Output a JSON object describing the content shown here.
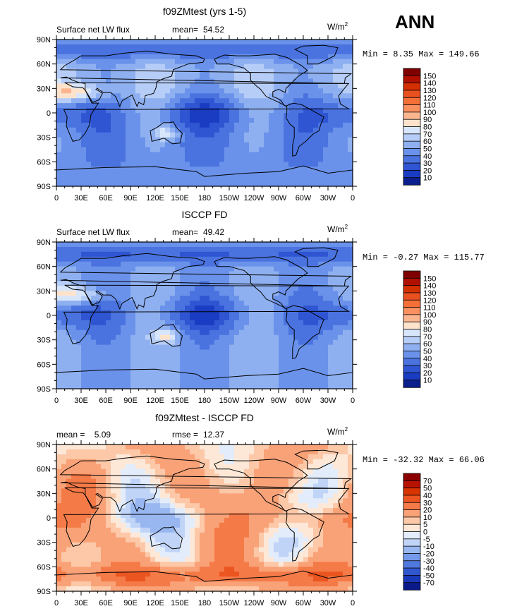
{
  "season": "ANN",
  "panels": [
    {
      "title": "f09ZMtest (yrs 1-5)",
      "left_label": "Surface net LW flux",
      "stat_label": "mean=",
      "stat_value": "54.52",
      "unit": "W/m",
      "unit_exp": "2",
      "minmax": "Min =   8.35 Max = 149.66",
      "colorbar_labels": [
        "150",
        "140",
        "130",
        "120",
        "110",
        "100",
        "90",
        "80",
        "70",
        "60",
        "50",
        "40",
        "30",
        "20",
        "10"
      ],
      "colors": [
        "#7f0000",
        "#b01000",
        "#d23000",
        "#e85020",
        "#f47038",
        "#f99060",
        "#fbb690",
        "#fde3cc",
        "#d8e6fb",
        "#b6cdf7",
        "#8fb0f0",
        "#6a92ea",
        "#4a73e0",
        "#2f55d2",
        "#1a3cc2",
        "#0b1f8c"
      ]
    },
    {
      "title": "ISCCP FD",
      "left_label": "Surface net LW flux",
      "stat_label": "mean=",
      "stat_value": "49.42",
      "unit": "W/m",
      "unit_exp": "2",
      "minmax": "Min =  -0.27 Max = 115.77",
      "colorbar_labels": [
        "150",
        "140",
        "130",
        "120",
        "110",
        "100",
        "90",
        "80",
        "70",
        "60",
        "50",
        "40",
        "30",
        "20",
        "10"
      ],
      "colors": [
        "#7f0000",
        "#b01000",
        "#d23000",
        "#e85020",
        "#f47038",
        "#f99060",
        "#fbb690",
        "#fde3cc",
        "#d8e6fb",
        "#b6cdf7",
        "#8fb0f0",
        "#6a92ea",
        "#4a73e0",
        "#2f55d2",
        "#1a3cc2",
        "#0b1f8c"
      ]
    },
    {
      "title": "f09ZMtest - ISCCP FD",
      "left_label": "mean =    5.09",
      "stat_label": "rmse =",
      "stat_value": "12.37",
      "unit": "W/m",
      "unit_exp": "2",
      "minmax": "Min = -32.32 Max =  66.06",
      "colorbar_labels": [
        "70",
        "50",
        "40",
        "30",
        "20",
        "10",
        "5",
        "0",
        "-5",
        "-10",
        "-20",
        "-30",
        "-40",
        "-50",
        "-70"
      ],
      "colors": [
        "#8a0000",
        "#b81200",
        "#d83400",
        "#eb5520",
        "#f47a48",
        "#f9a278",
        "#fcc8a8",
        "#fde8d8",
        "#e2ecfb",
        "#c0d4f7",
        "#98b7f1",
        "#7499ea",
        "#5079df",
        "#3157cf",
        "#1838b8",
        "#0a1a88"
      ]
    }
  ],
  "lat_ticks": [
    "90N",
    "60N",
    "30N",
    "0",
    "30S",
    "60S",
    "90S"
  ],
  "lon_ticks": [
    "0",
    "30E",
    "60E",
    "90E",
    "120E",
    "150E",
    "180",
    "150W",
    "120W",
    "90W",
    "60W",
    "30W",
    "0"
  ],
  "icons": {
    "landmask": "continent-outline-icon"
  }
}
